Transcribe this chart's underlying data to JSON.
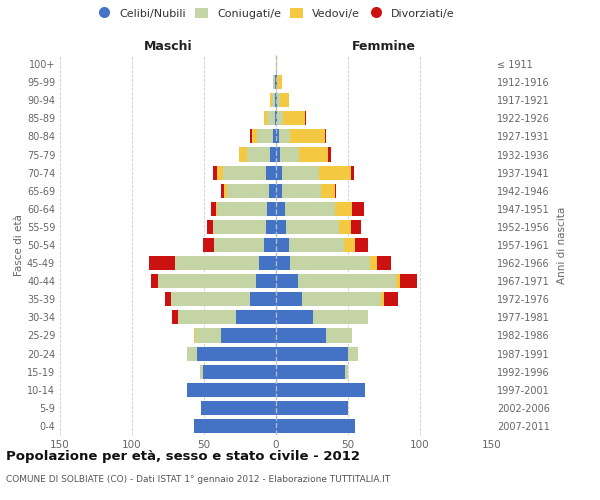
{
  "age_groups": [
    "0-4",
    "5-9",
    "10-14",
    "15-19",
    "20-24",
    "25-29",
    "30-34",
    "35-39",
    "40-44",
    "45-49",
    "50-54",
    "55-59",
    "60-64",
    "65-69",
    "70-74",
    "75-79",
    "80-84",
    "85-89",
    "90-94",
    "95-99",
    "100+"
  ],
  "birth_years": [
    "2007-2011",
    "2002-2006",
    "1997-2001",
    "1992-1996",
    "1987-1991",
    "1982-1986",
    "1977-1981",
    "1972-1976",
    "1967-1971",
    "1962-1966",
    "1957-1961",
    "1952-1956",
    "1947-1951",
    "1942-1946",
    "1937-1941",
    "1932-1936",
    "1927-1931",
    "1922-1926",
    "1917-1921",
    "1912-1916",
    "≤ 1911"
  ],
  "male_celibe": [
    57,
    52,
    62,
    51,
    55,
    38,
    28,
    18,
    14,
    12,
    8,
    7,
    6,
    5,
    7,
    4,
    2,
    1,
    1,
    1,
    0
  ],
  "male_coniugato": [
    0,
    0,
    0,
    2,
    7,
    18,
    40,
    55,
    68,
    58,
    35,
    37,
    35,
    29,
    30,
    16,
    11,
    5,
    2,
    1,
    0
  ],
  "male_vedovo": [
    0,
    0,
    0,
    0,
    0,
    1,
    0,
    0,
    0,
    0,
    0,
    0,
    1,
    2,
    4,
    6,
    4,
    2,
    1,
    0,
    0
  ],
  "male_divorziato": [
    0,
    0,
    0,
    0,
    0,
    0,
    4,
    4,
    5,
    18,
    8,
    4,
    3,
    2,
    3,
    0,
    1,
    0,
    0,
    0,
    0
  ],
  "female_celibe": [
    55,
    50,
    62,
    48,
    50,
    35,
    26,
    18,
    15,
    10,
    9,
    7,
    6,
    4,
    4,
    3,
    2,
    1,
    1,
    1,
    0
  ],
  "female_coniugato": [
    0,
    0,
    0,
    2,
    7,
    18,
    38,
    55,
    68,
    55,
    38,
    37,
    35,
    27,
    26,
    13,
    8,
    4,
    2,
    0,
    0
  ],
  "female_vedovo": [
    0,
    0,
    0,
    0,
    0,
    0,
    0,
    2,
    3,
    5,
    8,
    8,
    12,
    10,
    22,
    20,
    24,
    15,
    6,
    3,
    1
  ],
  "female_divorziato": [
    0,
    0,
    0,
    0,
    0,
    0,
    0,
    10,
    12,
    10,
    9,
    7,
    8,
    1,
    2,
    2,
    1,
    1,
    0,
    0,
    0
  ],
  "colors": {
    "celibe": "#4472c4",
    "coniugato": "#c5d4a5",
    "vedovo": "#f5c842",
    "divorziato": "#cc1111"
  },
  "title": "Popolazione per età, sesso e stato civile - 2012",
  "subtitle": "COMUNE DI SOLBIATE (CO) - Dati ISTAT 1° gennaio 2012 - Elaborazione TUTTITALIA.IT",
  "xlabel_left": "Maschi",
  "xlabel_right": "Femmine",
  "ylabel_left": "Fasce di età",
  "ylabel_right": "Anni di nascita",
  "xlim": 150,
  "background_color": "#ffffff",
  "grid_color": "#cccccc"
}
